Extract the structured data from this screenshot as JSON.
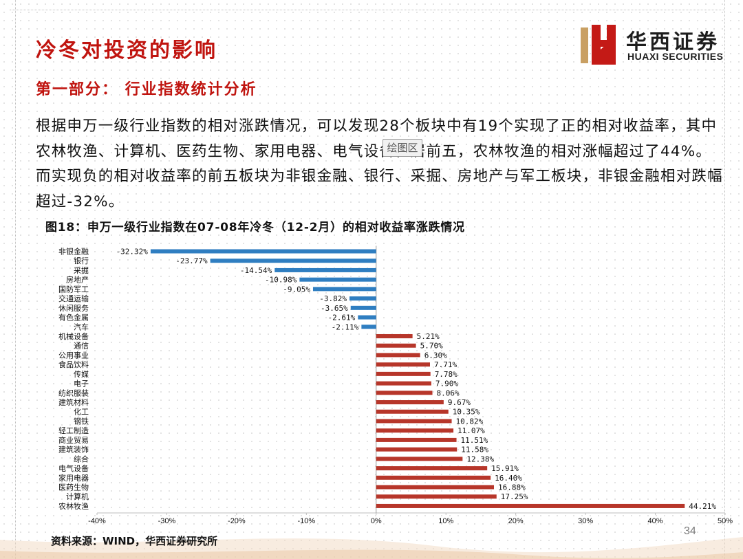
{
  "page_title": "冷冬对投资的影响",
  "logo": {
    "name_cn": "华西证券",
    "name_en": "HUAXI SECURITIES"
  },
  "section_heading": "第一部分： 行业指数统计分析",
  "body_text": "根据申万一级行业指数的相对涨跌情况，可以发现28个板块中有19个实现了正的相对收益率，其中农林牧渔、计算机、医药生物、家用电器、电气设备位居前五，农林牧渔的相对涨幅超过了44%。而实现负的相对收益率的前五板块为非银金融、银行、采掘、房地产与军工板块，非银金融相对跌幅超过-32%。",
  "overlay_button_label": "绘图区",
  "chart_title": "图18：申万一级行业指数在07-08年冷冬（12-2月）的相对收益率涨跌情况",
  "source_note": "资料来源：WIND，华西证券研究所",
  "page_number": "34",
  "colors": {
    "accent_red": "#c0140f",
    "bar_negative": "#2f7ec1",
    "bar_positive": "#b7362a",
    "logo_red": "#c41a16",
    "logo_gold": "#c9a063"
  },
  "chart_data": {
    "type": "bar",
    "orientation": "horizontal",
    "categories": [
      "非银金融",
      "银行",
      "采掘",
      "房地产",
      "国防军工",
      "交通运输",
      "休闲服务",
      "有色金属",
      "汽车",
      "机械设备",
      "通信",
      "公用事业",
      "食品饮料",
      "传媒",
      "电子",
      "纺织服装",
      "建筑材料",
      "化工",
      "钢铁",
      "轻工制造",
      "商业贸易",
      "建筑装饰",
      "综合",
      "电气设备",
      "家用电器",
      "医药生物",
      "计算机",
      "农林牧渔"
    ],
    "values": [
      -32.32,
      -23.77,
      -14.54,
      -10.98,
      -9.05,
      -3.82,
      -3.65,
      -2.61,
      -2.11,
      5.21,
      5.7,
      6.3,
      7.71,
      7.78,
      7.9,
      8.06,
      9.67,
      10.35,
      10.82,
      11.07,
      11.51,
      11.58,
      12.38,
      15.91,
      16.4,
      16.88,
      17.25,
      44.21
    ],
    "value_labels": [
      "-32.32%",
      "-23.77%",
      "-14.54%",
      "-10.98%",
      "-9.05%",
      "-3.82%",
      "-3.65%",
      "-2.61%",
      "-2.11%",
      "5.21%",
      "5.70%",
      "6.30%",
      "7.71%",
      "7.78%",
      "7.90%",
      "8.06%",
      "9.67%",
      "10.35%",
      "10.82%",
      "11.07%",
      "11.51%",
      "11.58%",
      "12.38%",
      "15.91%",
      "16.40%",
      "16.88%",
      "17.25%",
      "44.21%"
    ],
    "xlim": [
      -40,
      50
    ],
    "x_ticks": [
      -40,
      -30,
      -20,
      -10,
      0,
      10,
      20,
      30,
      40,
      50
    ],
    "x_tick_labels": [
      "-40%",
      "-30%",
      "-20%",
      "-10%",
      "0%",
      "10%",
      "20%",
      "30%",
      "40%",
      "50%"
    ],
    "grid": false,
    "legend": "none"
  }
}
